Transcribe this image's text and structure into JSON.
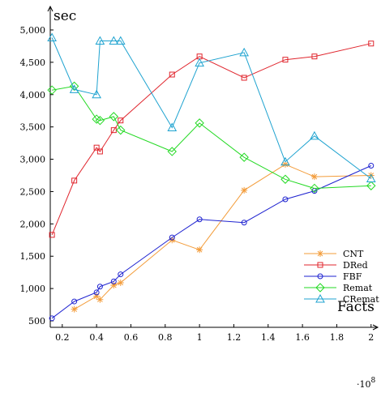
{
  "chart_data": {
    "type": "line",
    "xlabel": "Facts",
    "ylabel": "sec",
    "x_multiplier": "·10",
    "x_multiplier_exp": "8",
    "xlim": [
      0.13,
      2.02
    ],
    "ylim": [
      400,
      5150
    ],
    "x_ticks": [
      0.2,
      0.4,
      0.6,
      0.8,
      1,
      1.2,
      1.4,
      1.6,
      1.8,
      2
    ],
    "x_tick_labels": [
      "0.2",
      "0.4",
      "0.6",
      "0.8",
      "1",
      "1.2",
      "1.4",
      "1.6",
      "1.8",
      "2"
    ],
    "y_ticks": [
      500,
      1000,
      1500,
      2000,
      2500,
      3000,
      3500,
      4000,
      4500,
      5000
    ],
    "y_tick_labels": [
      "500",
      "1,000",
      "1,500",
      "2,000",
      "2,500",
      "3,000",
      "3,500",
      "4,000",
      "4,500",
      "5,000"
    ],
    "grid": false,
    "legend_position": "right",
    "series": [
      {
        "name": "CNT",
        "color": "#F39C3A",
        "marker": "star",
        "x": [
          0.27,
          0.4,
          0.42,
          0.5,
          0.54,
          0.84,
          1.0,
          1.26,
          1.5,
          1.67,
          2.0
        ],
        "y": [
          680,
          880,
          830,
          1050,
          1090,
          1750,
          1600,
          2520,
          2920,
          2730,
          2750
        ]
      },
      {
        "name": "DRed",
        "color": "#E0252D",
        "marker": "square",
        "x": [
          0.14,
          0.27,
          0.4,
          0.42,
          0.5,
          0.54,
          0.84,
          1.0,
          1.26,
          1.5,
          1.67,
          2.0
        ],
        "y": [
          1830,
          2670,
          3180,
          3120,
          3450,
          3600,
          4310,
          4590,
          4260,
          4540,
          4590,
          4790
        ]
      },
      {
        "name": "FBF",
        "color": "#1E22D0",
        "marker": "circle",
        "x": [
          0.14,
          0.27,
          0.4,
          0.42,
          0.5,
          0.54,
          0.84,
          1.0,
          1.26,
          1.5,
          1.67,
          2.0
        ],
        "y": [
          540,
          800,
          940,
          1030,
          1110,
          1220,
          1790,
          2070,
          2020,
          2380,
          2510,
          2900
        ]
      },
      {
        "name": "Remat",
        "color": "#23D923",
        "marker": "diamond",
        "x": [
          0.14,
          0.27,
          0.4,
          0.42,
          0.5,
          0.54,
          0.84,
          1.0,
          1.26,
          1.5,
          1.67,
          2.0
        ],
        "y": [
          4070,
          4130,
          3620,
          3600,
          3660,
          3450,
          3120,
          3560,
          3030,
          2690,
          2550,
          2590
        ]
      },
      {
        "name": "CRemat",
        "color": "#1FA3D0",
        "marker": "triangle",
        "x": [
          0.14,
          0.27,
          0.4,
          0.42,
          0.5,
          0.54,
          0.84,
          1.0,
          1.26,
          1.5,
          1.67,
          2.0
        ],
        "y": [
          4880,
          4080,
          4000,
          4830,
          4830,
          4830,
          3490,
          4490,
          4650,
          2960,
          3360,
          2700
        ]
      }
    ]
  }
}
